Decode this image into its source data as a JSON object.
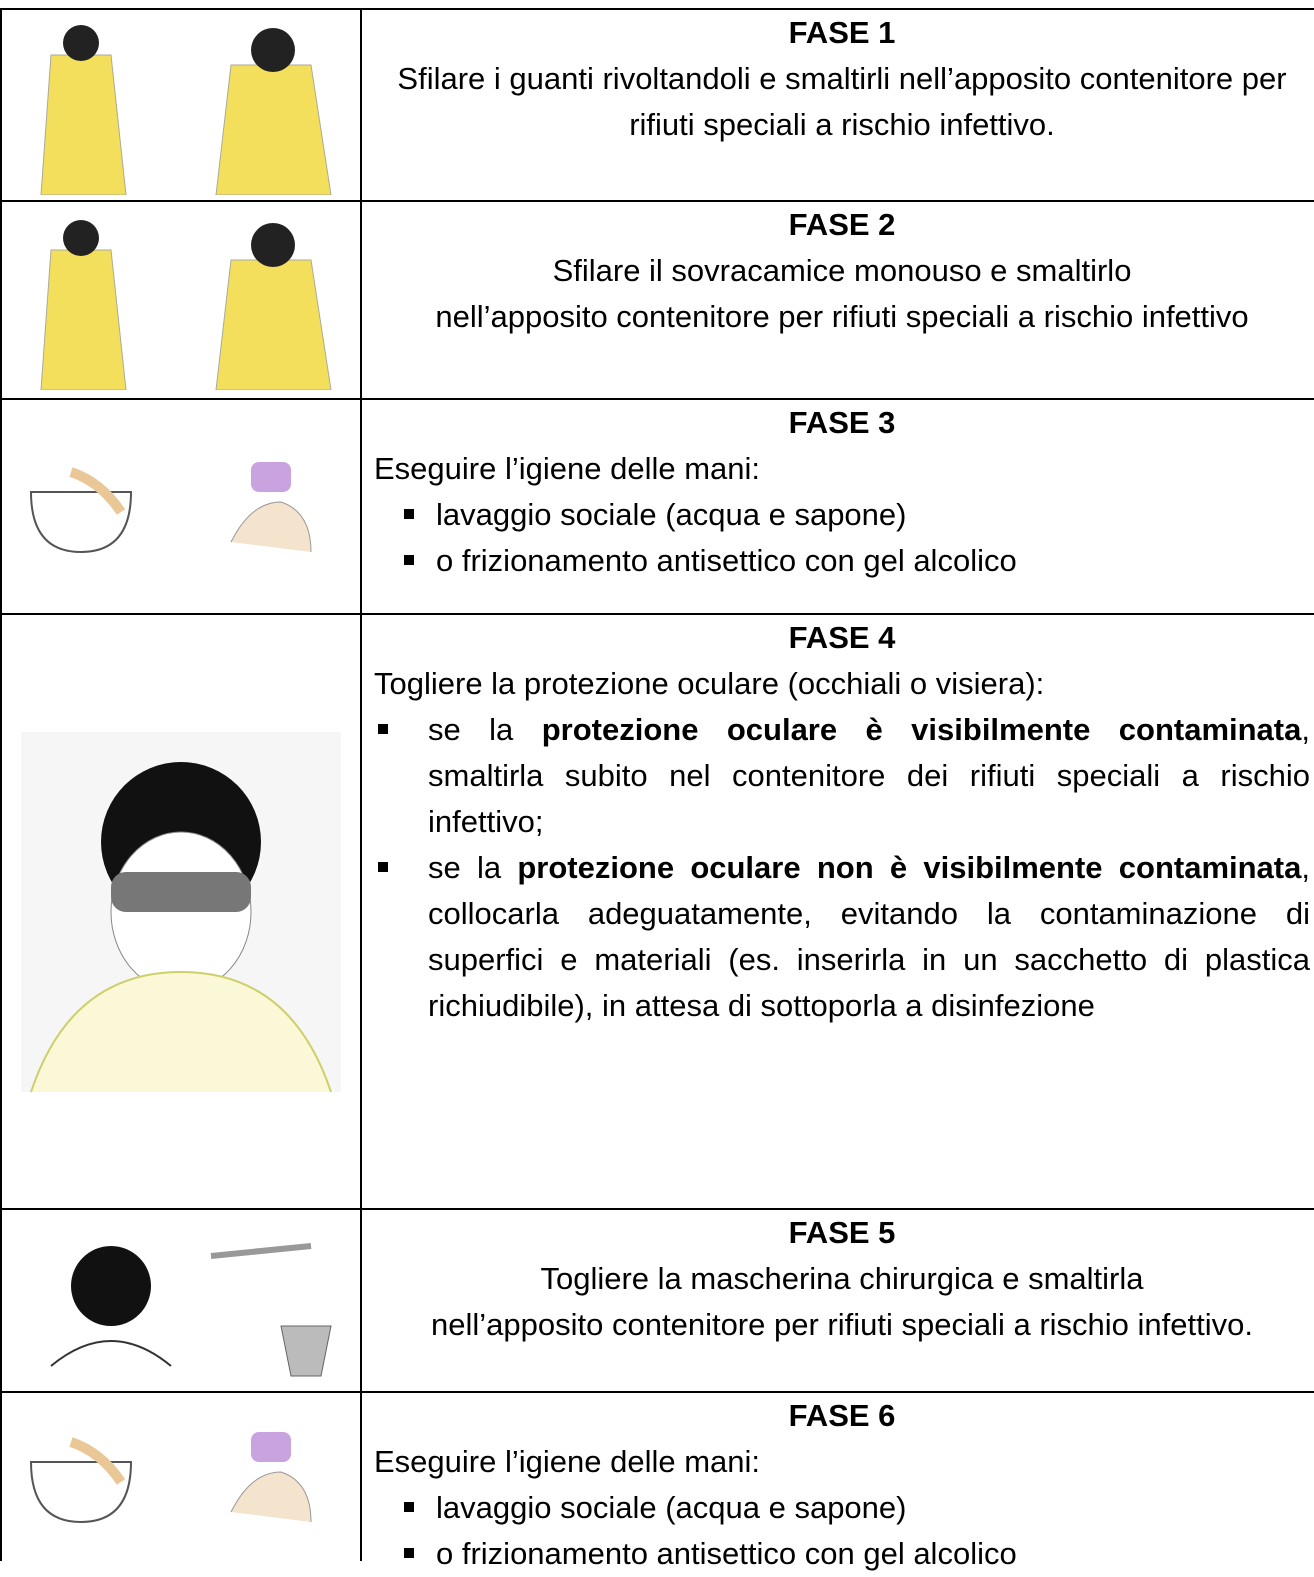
{
  "rows": [
    {
      "title": "FASE 1",
      "lines": [
        "Sfilare i guanti rivoltandoli e smaltirli nell’apposito contenitore per rifiuti speciali a rischio infettivo."
      ]
    },
    {
      "title": "FASE 2",
      "lines": [
        "Sfilare il sovracamice monouso e smaltirlo",
        "nell’apposito contenitore per rifiuti speciali a rischio infettivo"
      ]
    },
    {
      "title": "FASE 3",
      "intro": "Eseguire l’igiene delle mani:",
      "bullets": [
        {
          "parts": [
            "lavaggio sociale (acqua e sapone)"
          ]
        },
        {
          "parts": [
            "o frizionamento antisettico con gel alcolico"
          ]
        }
      ]
    },
    {
      "title": "FASE 4",
      "intro": "Togliere la protezione oculare (occhiali o visiera):",
      "bullets": [
        {
          "parts": [
            "se la ",
            "protezione oculare è visibilmente contaminata",
            ", smaltirla subito nel contenitore dei rifiuti speciali a rischio infettivo;"
          ]
        },
        {
          "parts": [
            "se la ",
            "protezione oculare non è visibilmente contaminata",
            ", collocarla adeguatamente, evitando la contaminazione di superfici e materiali (es. inserirla in un sacchetto di plastica richiudibile), in attesa di sottoporla a disinfezione"
          ]
        }
      ]
    },
    {
      "title": "FASE 5",
      "lines": [
        "Togliere la mascherina chirurgica e smaltirla",
        "nell’apposito contenitore per rifiuti speciali a rischio infettivo."
      ]
    },
    {
      "title": "FASE 6",
      "intro": "Eseguire l’igiene delle mani:",
      "bullets": [
        {
          "parts": [
            "lavaggio sociale (acqua e sapone)"
          ]
        },
        {
          "parts": [
            "o frizionamento antisettico con gel alcolico"
          ]
        }
      ]
    }
  ]
}
